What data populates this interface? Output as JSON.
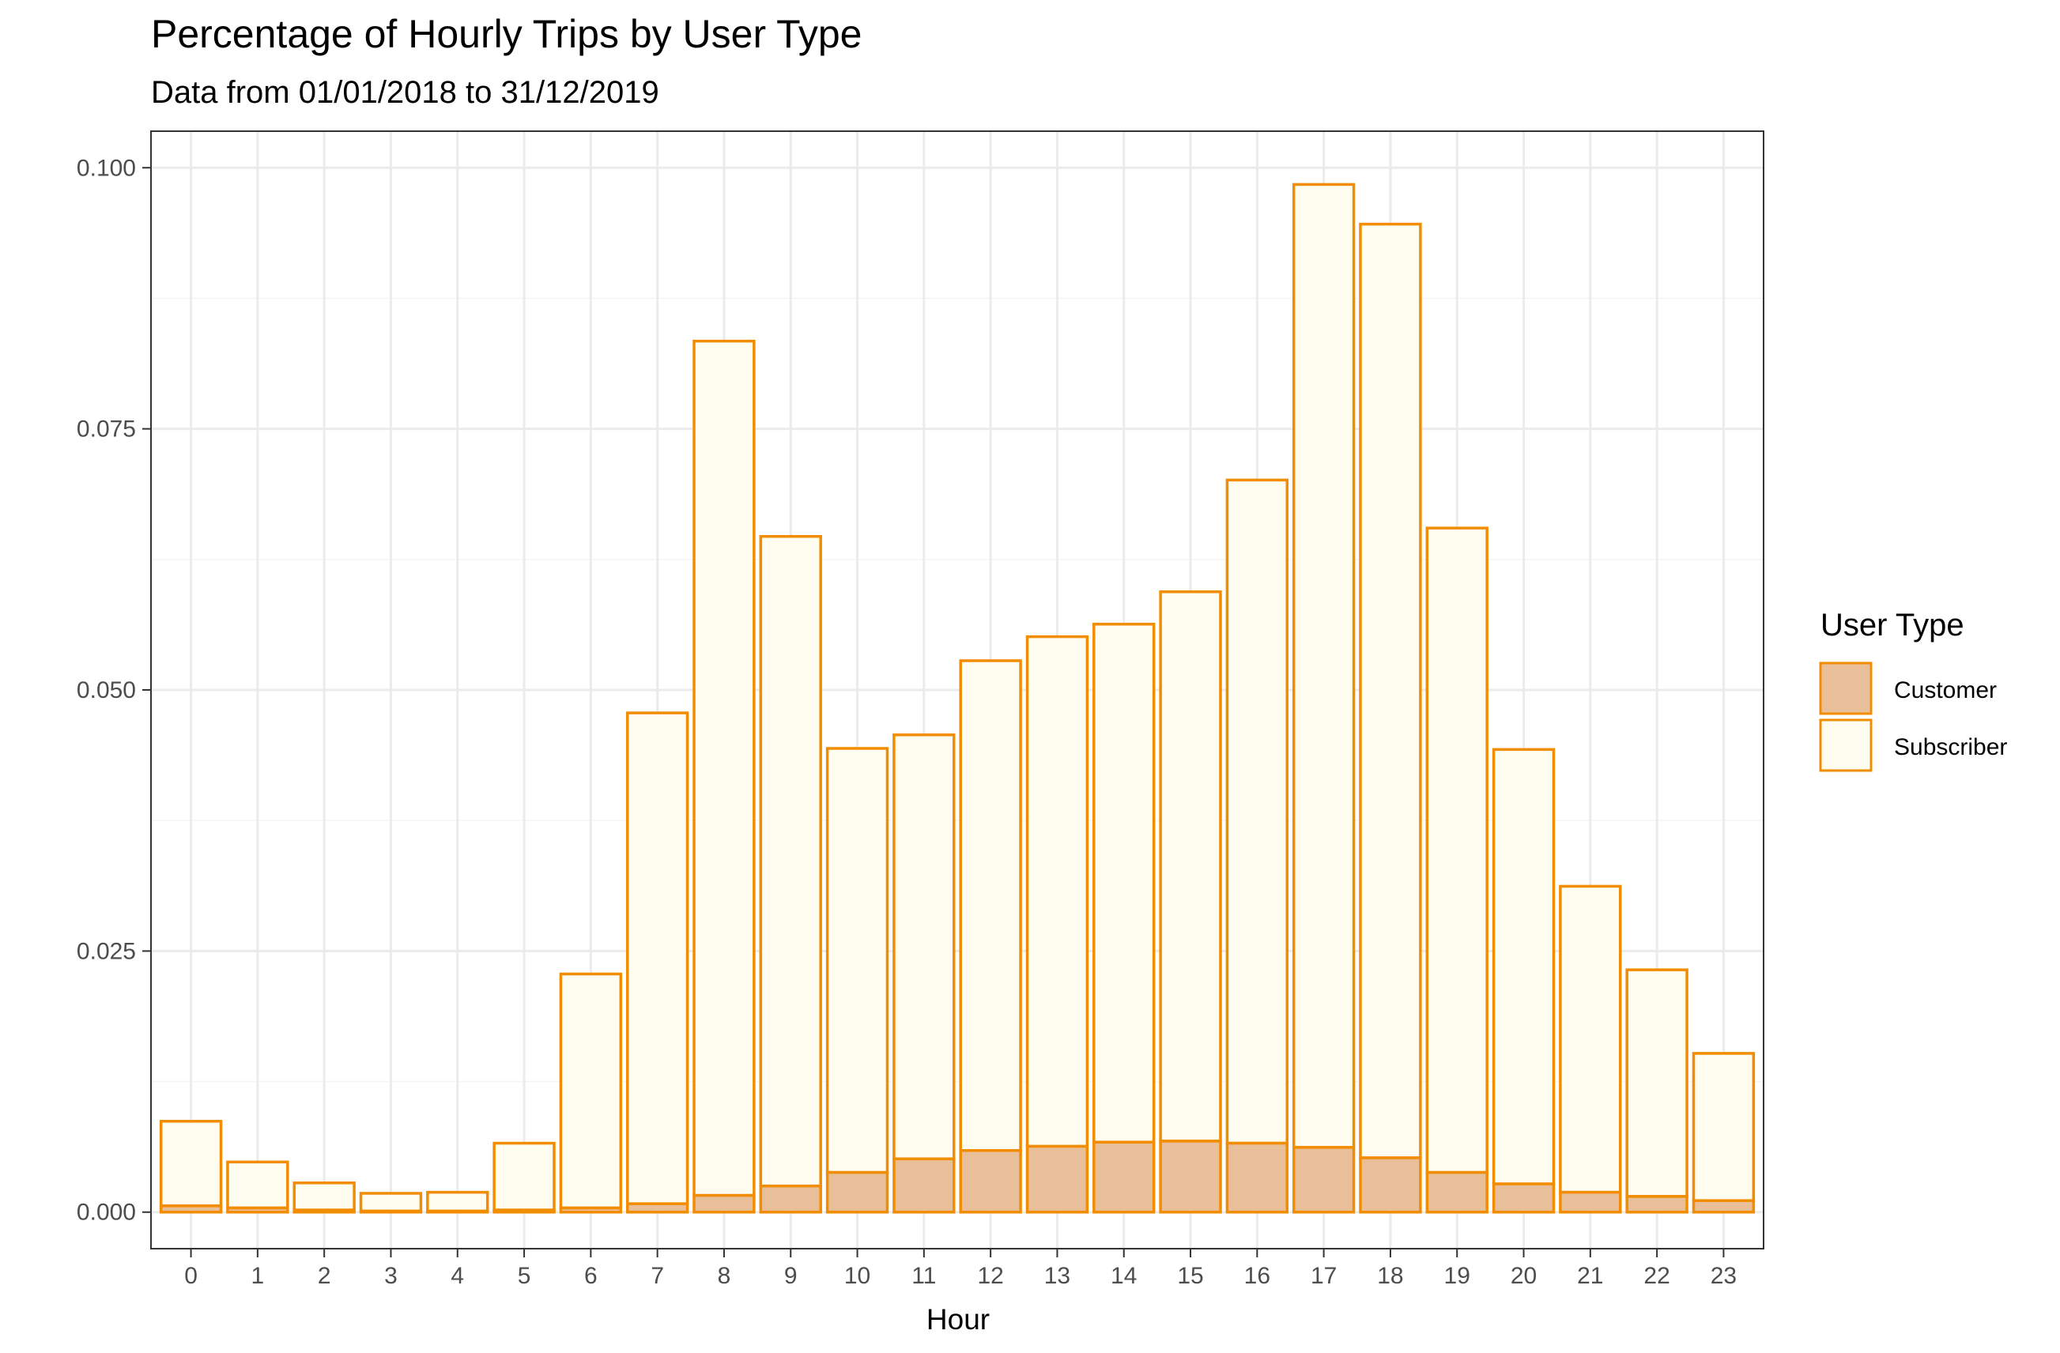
{
  "chart_data": {
    "type": "bar",
    "stacked": true,
    "title": "Percentage of Hourly Trips by User Type",
    "subtitle": "Data from 01/01/2018 to 31/12/2019",
    "xlabel": "Hour",
    "ylabel": "",
    "categories": [
      "0",
      "1",
      "2",
      "3",
      "4",
      "5",
      "6",
      "7",
      "8",
      "9",
      "10",
      "11",
      "12",
      "13",
      "14",
      "15",
      "16",
      "17",
      "18",
      "19",
      "20",
      "21",
      "22",
      "23"
    ],
    "ylim": [
      -0.0035,
      0.1035
    ],
    "yticks": [
      0.0,
      0.025,
      0.05,
      0.075,
      0.1
    ],
    "ytick_labels": [
      "0.000",
      "0.025",
      "0.050",
      "0.075",
      "0.100"
    ],
    "grid": true,
    "legend": {
      "title": "User Type",
      "position": "right"
    },
    "series": [
      {
        "name": "Customer",
        "color": "#E8BF98",
        "values": [
          0.0006,
          0.0004,
          0.0002,
          0.0001,
          0.0001,
          0.0002,
          0.0004,
          0.0008,
          0.0016,
          0.0025,
          0.0038,
          0.0051,
          0.0059,
          0.0063,
          0.0067,
          0.0068,
          0.0066,
          0.0062,
          0.0052,
          0.0038,
          0.0027,
          0.0019,
          0.0015,
          0.0011
        ]
      },
      {
        "name": "Subscriber",
        "color": "#FFFDF0",
        "values": [
          0.0081,
          0.0044,
          0.0026,
          0.0017,
          0.0018,
          0.0064,
          0.0224,
          0.047,
          0.0818,
          0.0622,
          0.0406,
          0.0406,
          0.0469,
          0.0488,
          0.0496,
          0.0526,
          0.0635,
          0.0922,
          0.0894,
          0.0617,
          0.0416,
          0.0293,
          0.0217,
          0.0141
        ]
      }
    ],
    "bar_outline_color": "#F28C00",
    "panel_border_color": "#333333",
    "grid_major_color": "#EBEBEB",
    "grid_minor_color": "#F4F4F4"
  }
}
